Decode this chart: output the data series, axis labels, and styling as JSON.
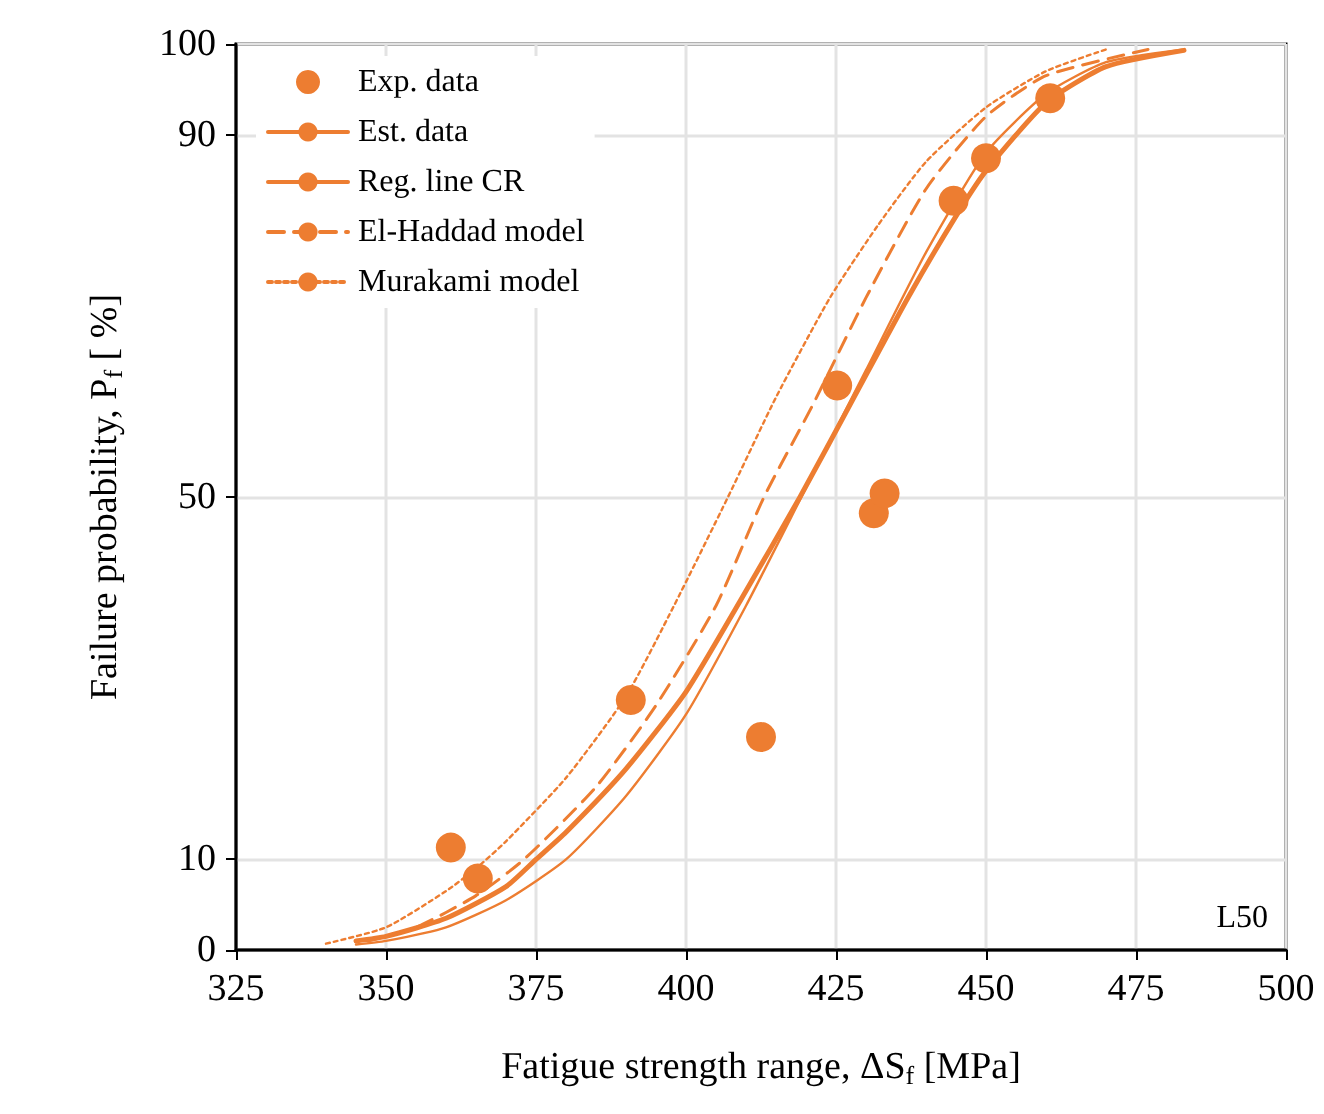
{
  "chart_data": {
    "type": "line",
    "xlabel": "Fatigue strength range, ΔS$_{f}$ [MPa]",
    "ylabel": "Failure probability, P$_{f}$ [ %]",
    "annotations": [
      "L50"
    ],
    "xlim": [
      325,
      500
    ],
    "xticks": [
      325,
      350,
      375,
      400,
      425,
      450,
      475,
      500
    ],
    "ylim": [
      0,
      100
    ],
    "yticks": [
      0,
      10,
      50,
      90,
      100
    ],
    "grid": true,
    "legend": "top left",
    "marker": "none",
    "series": [
      {
        "name": "Exp. data",
        "type": "scatter",
        "marker": "circle",
        "color": "#ed7d31",
        "x": [
          360.8,
          365.3,
          390.8,
          412.5,
          425.2,
          431.3,
          433.1,
          444.6,
          450.0,
          460.7
        ],
        "values": [
          11.3,
          7.9,
          27.6,
          23.5,
          62.3,
          48.2,
          50.4,
          82.7,
          87.4,
          94.0
        ]
      },
      {
        "name": "Est. data",
        "line_style": "solid",
        "color": "#ed7d31",
        "x": [
          345,
          350,
          360,
          370,
          375,
          380,
          390,
          400,
          409,
          419,
          428,
          437,
          445,
          450,
          460,
          470,
          483
        ],
        "values": [
          1,
          1.5,
          3.5,
          7,
          10,
          13,
          20,
          28.5,
          38.5,
          50,
          61,
          72,
          81,
          86,
          93.5,
          97.5,
          99.3
        ]
      },
      {
        "name": "Reg. line CR",
        "line_style": "solid",
        "color": "#ed7d31",
        "x": [
          345,
          350,
          360,
          370,
          380,
          390,
          400,
          410,
          420,
          430,
          440,
          450,
          460,
          470,
          483
        ],
        "values": [
          0.6,
          1,
          2.5,
          5.5,
          10,
          17,
          26,
          38,
          51,
          64,
          77,
          88,
          94.5,
          98,
          99.4
        ]
      },
      {
        "name": "El-Haddad model",
        "line_style": "dashed",
        "color": "#ed7d31",
        "x": [
          347,
          355,
          365,
          373,
          385,
          395,
          405,
          413,
          421,
          430,
          440,
          450,
          460,
          477
        ],
        "values": [
          1,
          2.5,
          6,
          10,
          18,
          27,
          38,
          50,
          60,
          72,
          84,
          92,
          96.5,
          99.4
        ]
      },
      {
        "name": "Murakami model",
        "line_style": "dotted",
        "color": "#ed7d31",
        "x": [
          340,
          350,
          360,
          365,
          370,
          380,
          390,
          398,
          407,
          415,
          424,
          432,
          440,
          450,
          460,
          470
        ],
        "values": [
          0.7,
          2.5,
          6.5,
          9,
          12,
          19,
          28,
          38,
          50,
          61,
          72,
          80,
          87,
          93,
          97,
          99.4
        ]
      }
    ]
  }
}
